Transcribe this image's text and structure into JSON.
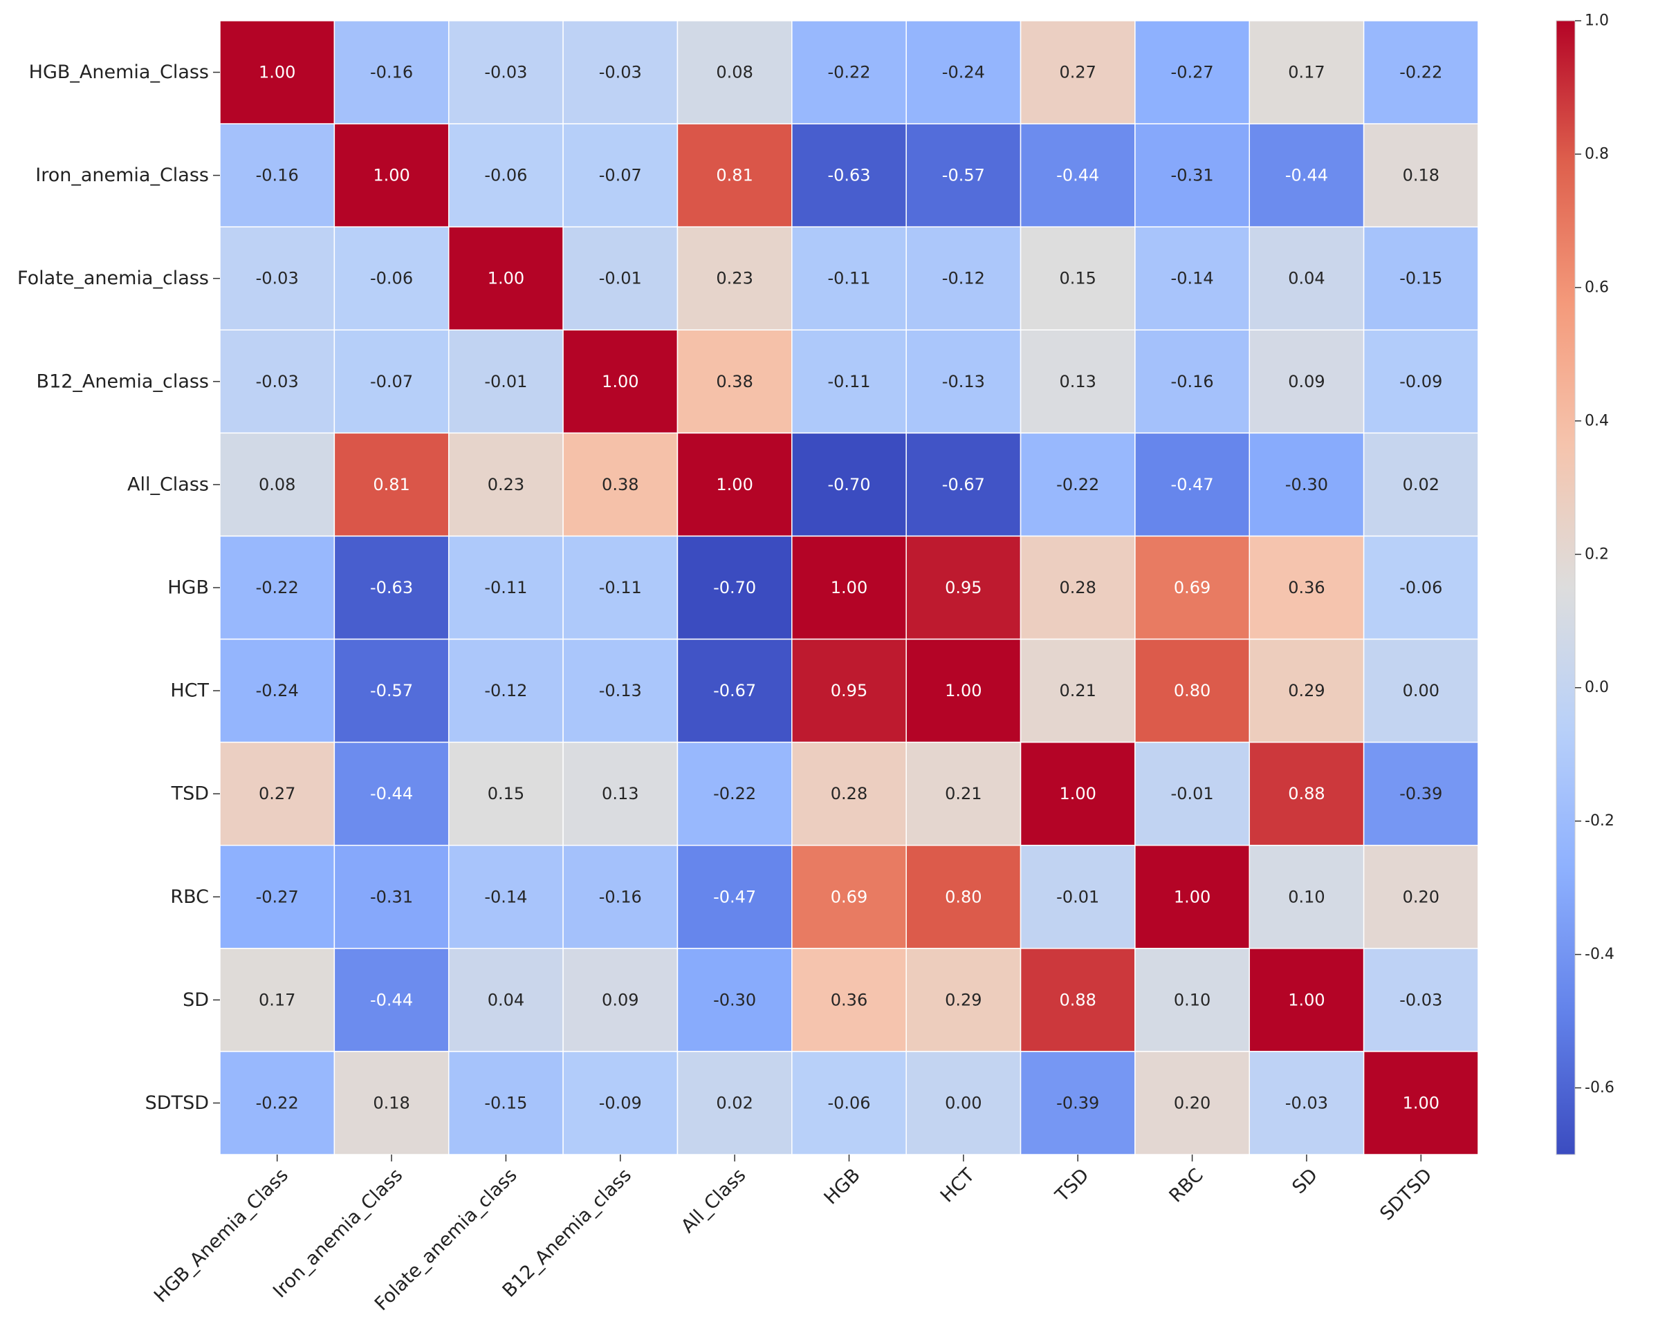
{
  "chart_data": {
    "type": "heatmap",
    "title": "",
    "xlabel": "",
    "ylabel": "",
    "colormap": "coolwarm",
    "vmin": -0.7,
    "vmax": 1.0,
    "labels": [
      "HGB_Anemia_Class",
      "Iron_anemia_Class",
      "Folate_anemia_class",
      "B12_Anemia_class",
      "All_Class",
      "HGB",
      "HCT",
      "TSD",
      "RBC",
      "SD",
      "SDTSD"
    ],
    "matrix": [
      [
        1.0,
        -0.16,
        -0.03,
        -0.03,
        0.08,
        -0.22,
        -0.24,
        0.27,
        -0.27,
        0.17,
        -0.22
      ],
      [
        -0.16,
        1.0,
        -0.06,
        -0.07,
        0.81,
        -0.63,
        -0.57,
        -0.44,
        -0.31,
        -0.44,
        0.18
      ],
      [
        -0.03,
        -0.06,
        1.0,
        -0.01,
        0.23,
        -0.11,
        -0.12,
        0.15,
        -0.14,
        0.04,
        -0.15
      ],
      [
        -0.03,
        -0.07,
        -0.01,
        1.0,
        0.38,
        -0.11,
        -0.13,
        0.13,
        -0.16,
        0.09,
        -0.09
      ],
      [
        0.08,
        0.81,
        0.23,
        0.38,
        1.0,
        -0.7,
        -0.67,
        -0.22,
        -0.47,
        -0.3,
        0.02
      ],
      [
        -0.22,
        -0.63,
        -0.11,
        -0.11,
        -0.7,
        1.0,
        0.95,
        0.28,
        0.69,
        0.36,
        -0.06
      ],
      [
        -0.24,
        -0.57,
        -0.12,
        -0.13,
        -0.67,
        0.95,
        1.0,
        0.21,
        0.8,
        0.29,
        0.0
      ],
      [
        0.27,
        -0.44,
        0.15,
        0.13,
        -0.22,
        0.28,
        0.21,
        1.0,
        -0.01,
        0.88,
        -0.39
      ],
      [
        -0.27,
        -0.31,
        -0.14,
        -0.16,
        -0.47,
        0.69,
        0.8,
        -0.01,
        1.0,
        0.1,
        0.2
      ],
      [
        0.17,
        -0.44,
        0.04,
        0.09,
        -0.3,
        0.36,
        0.29,
        0.88,
        0.1,
        1.0,
        -0.03
      ],
      [
        -0.22,
        0.18,
        -0.15,
        -0.09,
        0.02,
        -0.06,
        0.0,
        -0.39,
        0.2,
        -0.03,
        1.0
      ]
    ],
    "colorbar": {
      "ticks": [
        1.0,
        0.8,
        0.6,
        0.4,
        0.2,
        0.0,
        -0.2,
        -0.4,
        -0.6
      ],
      "tick_labels": [
        "1.0",
        "0.8",
        "0.6",
        "0.4",
        "0.2",
        "0.0",
        "-0.2",
        "-0.4",
        "-0.6"
      ]
    }
  }
}
